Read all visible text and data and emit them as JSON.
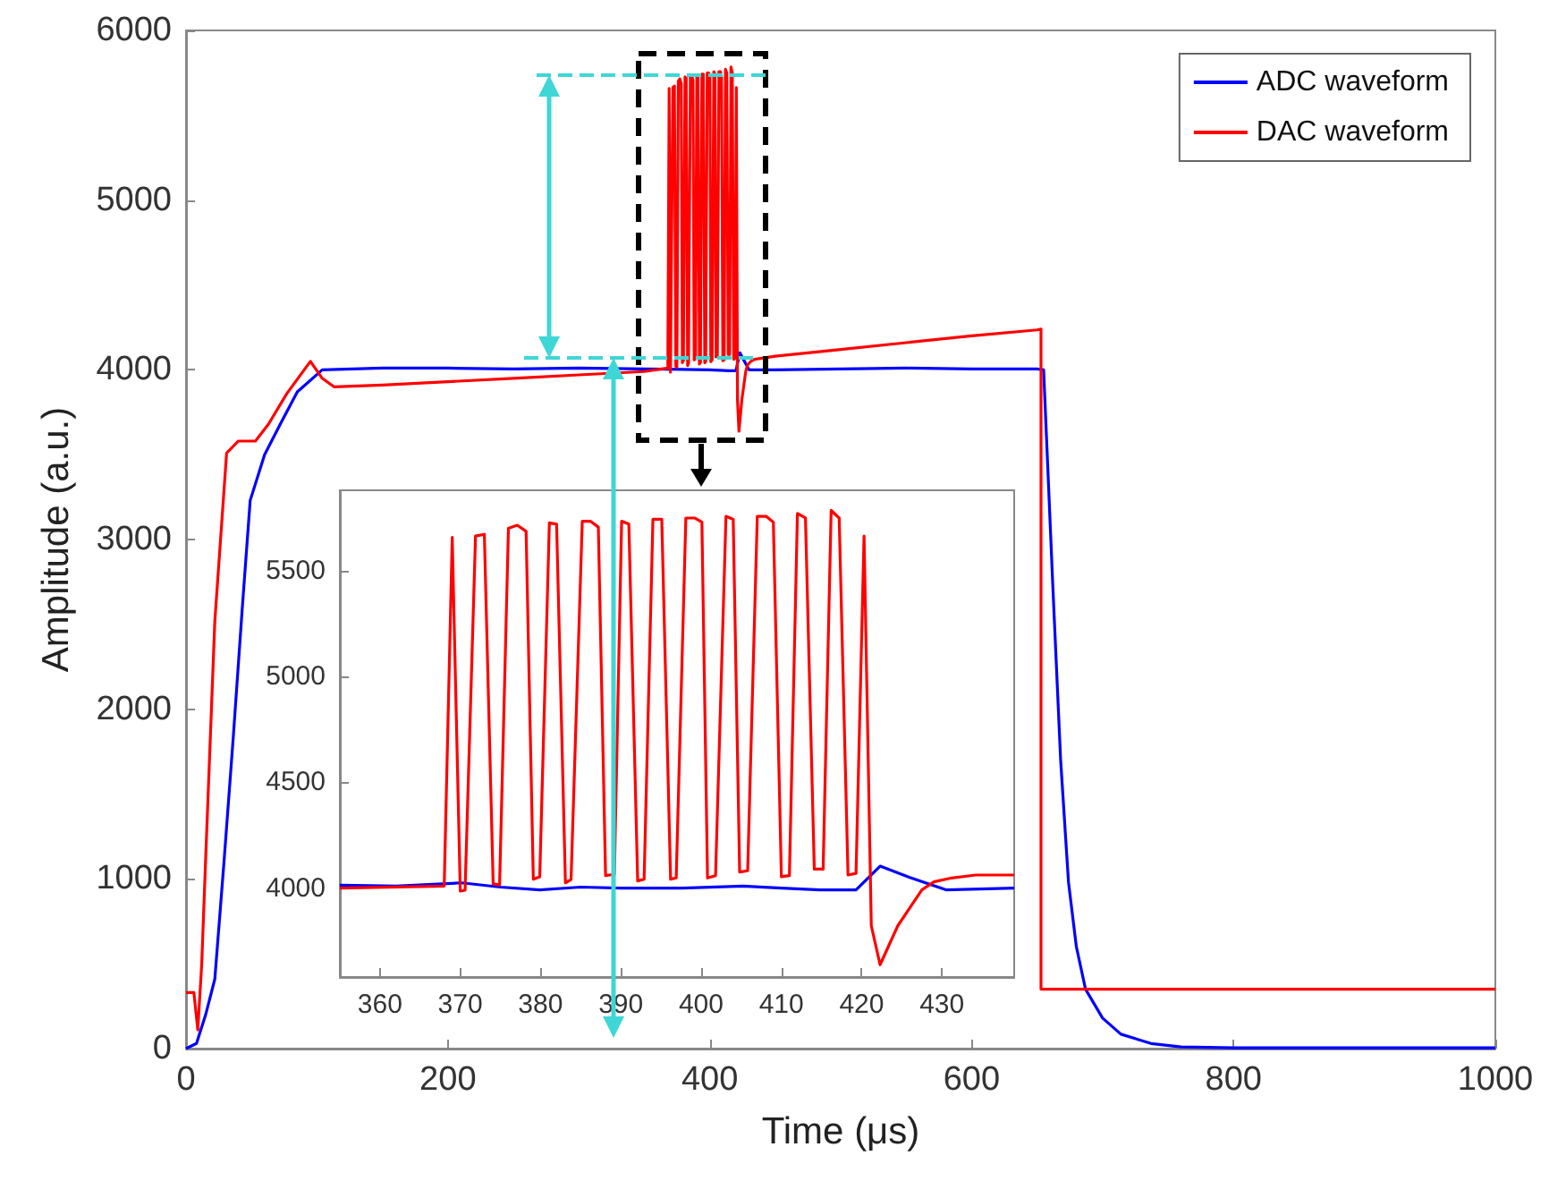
{
  "chart_data": [
    {
      "type": "line",
      "xlabel": "Time (μs)",
      "ylabel": "Amplitude (a.u.)",
      "xlim": [
        0,
        1000
      ],
      "xticks": [
        0,
        200,
        400,
        600,
        800,
        1000
      ],
      "ylim": [
        0,
        6000
      ],
      "yticks": [
        0,
        1000,
        2000,
        3000,
        4000,
        5000,
        6000
      ],
      "grid": false,
      "legend": "top right",
      "marker": "none",
      "series": [
        {
          "name": "ADC waveform",
          "color": "#0000ff",
          "x": [
            0,
            8,
            15,
            22,
            29,
            36,
            43,
            49,
            60,
            72,
            85,
            104,
            150,
            200,
            250,
            300,
            350,
            400,
            415,
            420,
            423,
            430,
            450,
            500,
            550,
            600,
            650,
            655,
            662,
            668,
            674,
            680,
            687,
            700,
            714,
            737,
            760,
            800,
            900,
            1000
          ],
          "values": [
            0,
            30,
            200,
            410,
            1100,
            1826,
            2600,
            3230,
            3500,
            3680,
            3870,
            4000,
            4010,
            4010,
            4005,
            4010,
            4005,
            4000,
            3995,
            3995,
            4100,
            4000,
            4000,
            4005,
            4010,
            4005,
            4005,
            4000,
            2730,
            1700,
            980,
            600,
            350,
            180,
            85,
            30,
            10,
            5,
            5,
            5
          ]
        },
        {
          "name": "DAC waveform",
          "color": "#ff0000",
          "x": [
            0,
            6,
            9,
            12,
            15,
            22,
            31,
            40,
            53,
            63,
            77,
            95,
            104,
            113,
            150,
            200,
            250,
            300,
            350,
            368,
            369,
            370,
            370.6,
            371.9,
            373,
            374.1,
            374.9,
            376,
            377.1,
            378.2,
            379.1,
            379.9,
            381.1,
            382,
            383.1,
            383.8,
            385.2,
            386.2,
            387.2,
            388.1,
            389.2,
            390.1,
            391,
            392.1,
            392.9,
            394,
            395.1,
            396.2,
            396.9,
            398.1,
            399.2,
            400.1,
            400.8,
            401.8,
            403.1,
            404,
            404.8,
            405.8,
            407,
            408.1,
            409,
            410,
            411,
            412,
            413,
            414.1,
            415.2,
            416.2,
            417.2,
            418.3,
            419.3,
            420.3,
            421.2,
            422.3,
            424.5,
            427.5,
            429,
            431.2,
            434.2,
            450,
            500,
            550,
            600,
            650,
            653,
            653,
            700,
            800,
            1000
          ],
          "values": [
            330,
            330,
            110,
            500,
            1120,
            2520,
            3510,
            3580,
            3580,
            3680,
            3860,
            4050,
            3950,
            3900,
            3910,
            3930,
            3950,
            3970,
            3990,
            4010,
            5658,
            3986,
            3990,
            5664,
            5672,
            4020,
            4015,
            5700,
            5715,
            5686,
            4042,
            4054,
            5726,
            5720,
            4025,
            4040,
            5734,
            5734,
            5706,
            4059,
            4065,
            5734,
            5720,
            4034,
            4042,
            5743,
            5743,
            4042,
            4048,
            5749,
            5749,
            5729,
            4048,
            4059,
            5757,
            5743,
            4076,
            4082,
            5757,
            5757,
            5729,
            4054,
            4059,
            5771,
            5749,
            4090,
            4090,
            5785,
            5749,
            4062,
            4070,
            5664,
            3822,
            3638,
            3822,
            3992,
            4030,
            4048,
            4062,
            4080,
            4120,
            4160,
            4200,
            4235,
            4240,
            350,
            350,
            350,
            350
          ]
        }
      ]
    },
    {
      "type": "line",
      "xlim": [
        355,
        439
      ],
      "xticks": [
        360,
        370,
        380,
        390,
        400,
        410,
        420,
        430
      ],
      "ylim": [
        3580,
        5880
      ],
      "yticks": [
        4000,
        4500,
        5000,
        5500
      ],
      "grid": false,
      "legend": false,
      "marker": "none",
      "series": [
        {
          "color": "#0000ff",
          "x": [
            355,
            362,
            370.2,
            375,
            379.9,
            385,
            390,
            397.7,
            405.2,
            410,
            414.8,
            419.3,
            422.3,
            426,
            430.5,
            439
          ],
          "values": [
            4014,
            4010,
            4025,
            4005,
            3992,
            4005,
            4000,
            4000,
            4010,
            4000,
            3992,
            3992,
            4104,
            4050,
            3992,
            4000
          ]
        },
        {
          "color": "#ff0000",
          "x": [
            355,
            368,
            369,
            370,
            370.6,
            371.9,
            373,
            374.1,
            374.9,
            376,
            377.1,
            378.2,
            379.1,
            379.9,
            381.1,
            382,
            383.1,
            383.8,
            385.2,
            386.2,
            387.2,
            388.1,
            389.2,
            390.1,
            391,
            392.1,
            392.9,
            394,
            395.1,
            396.2,
            396.9,
            398.1,
            399.2,
            400.1,
            400.8,
            401.8,
            403.1,
            404,
            404.8,
            405.8,
            407,
            408.1,
            409,
            410,
            411,
            412,
            413,
            414.1,
            415.2,
            416.2,
            417.2,
            418.3,
            419.3,
            420.3,
            421.2,
            422.3,
            424.5,
            427.5,
            429,
            431.2,
            434.2,
            439
          ],
          "values": [
            4000,
            4010,
            5658,
            3986,
            3990,
            5664,
            5672,
            4020,
            4015,
            5700,
            5715,
            5686,
            4042,
            4054,
            5726,
            5720,
            4025,
            4040,
            5734,
            5734,
            5706,
            4059,
            4065,
            5734,
            5720,
            4034,
            4042,
            5743,
            5743,
            4042,
            4048,
            5749,
            5749,
            5729,
            4048,
            4059,
            5757,
            5743,
            4076,
            4082,
            5757,
            5757,
            5729,
            4054,
            4059,
            5771,
            5749,
            4090,
            4090,
            5785,
            5749,
            4062,
            4070,
            5664,
            3822,
            3638,
            3822,
            3992,
            4030,
            4048,
            4062,
            4062
          ]
        }
      ]
    }
  ]
}
